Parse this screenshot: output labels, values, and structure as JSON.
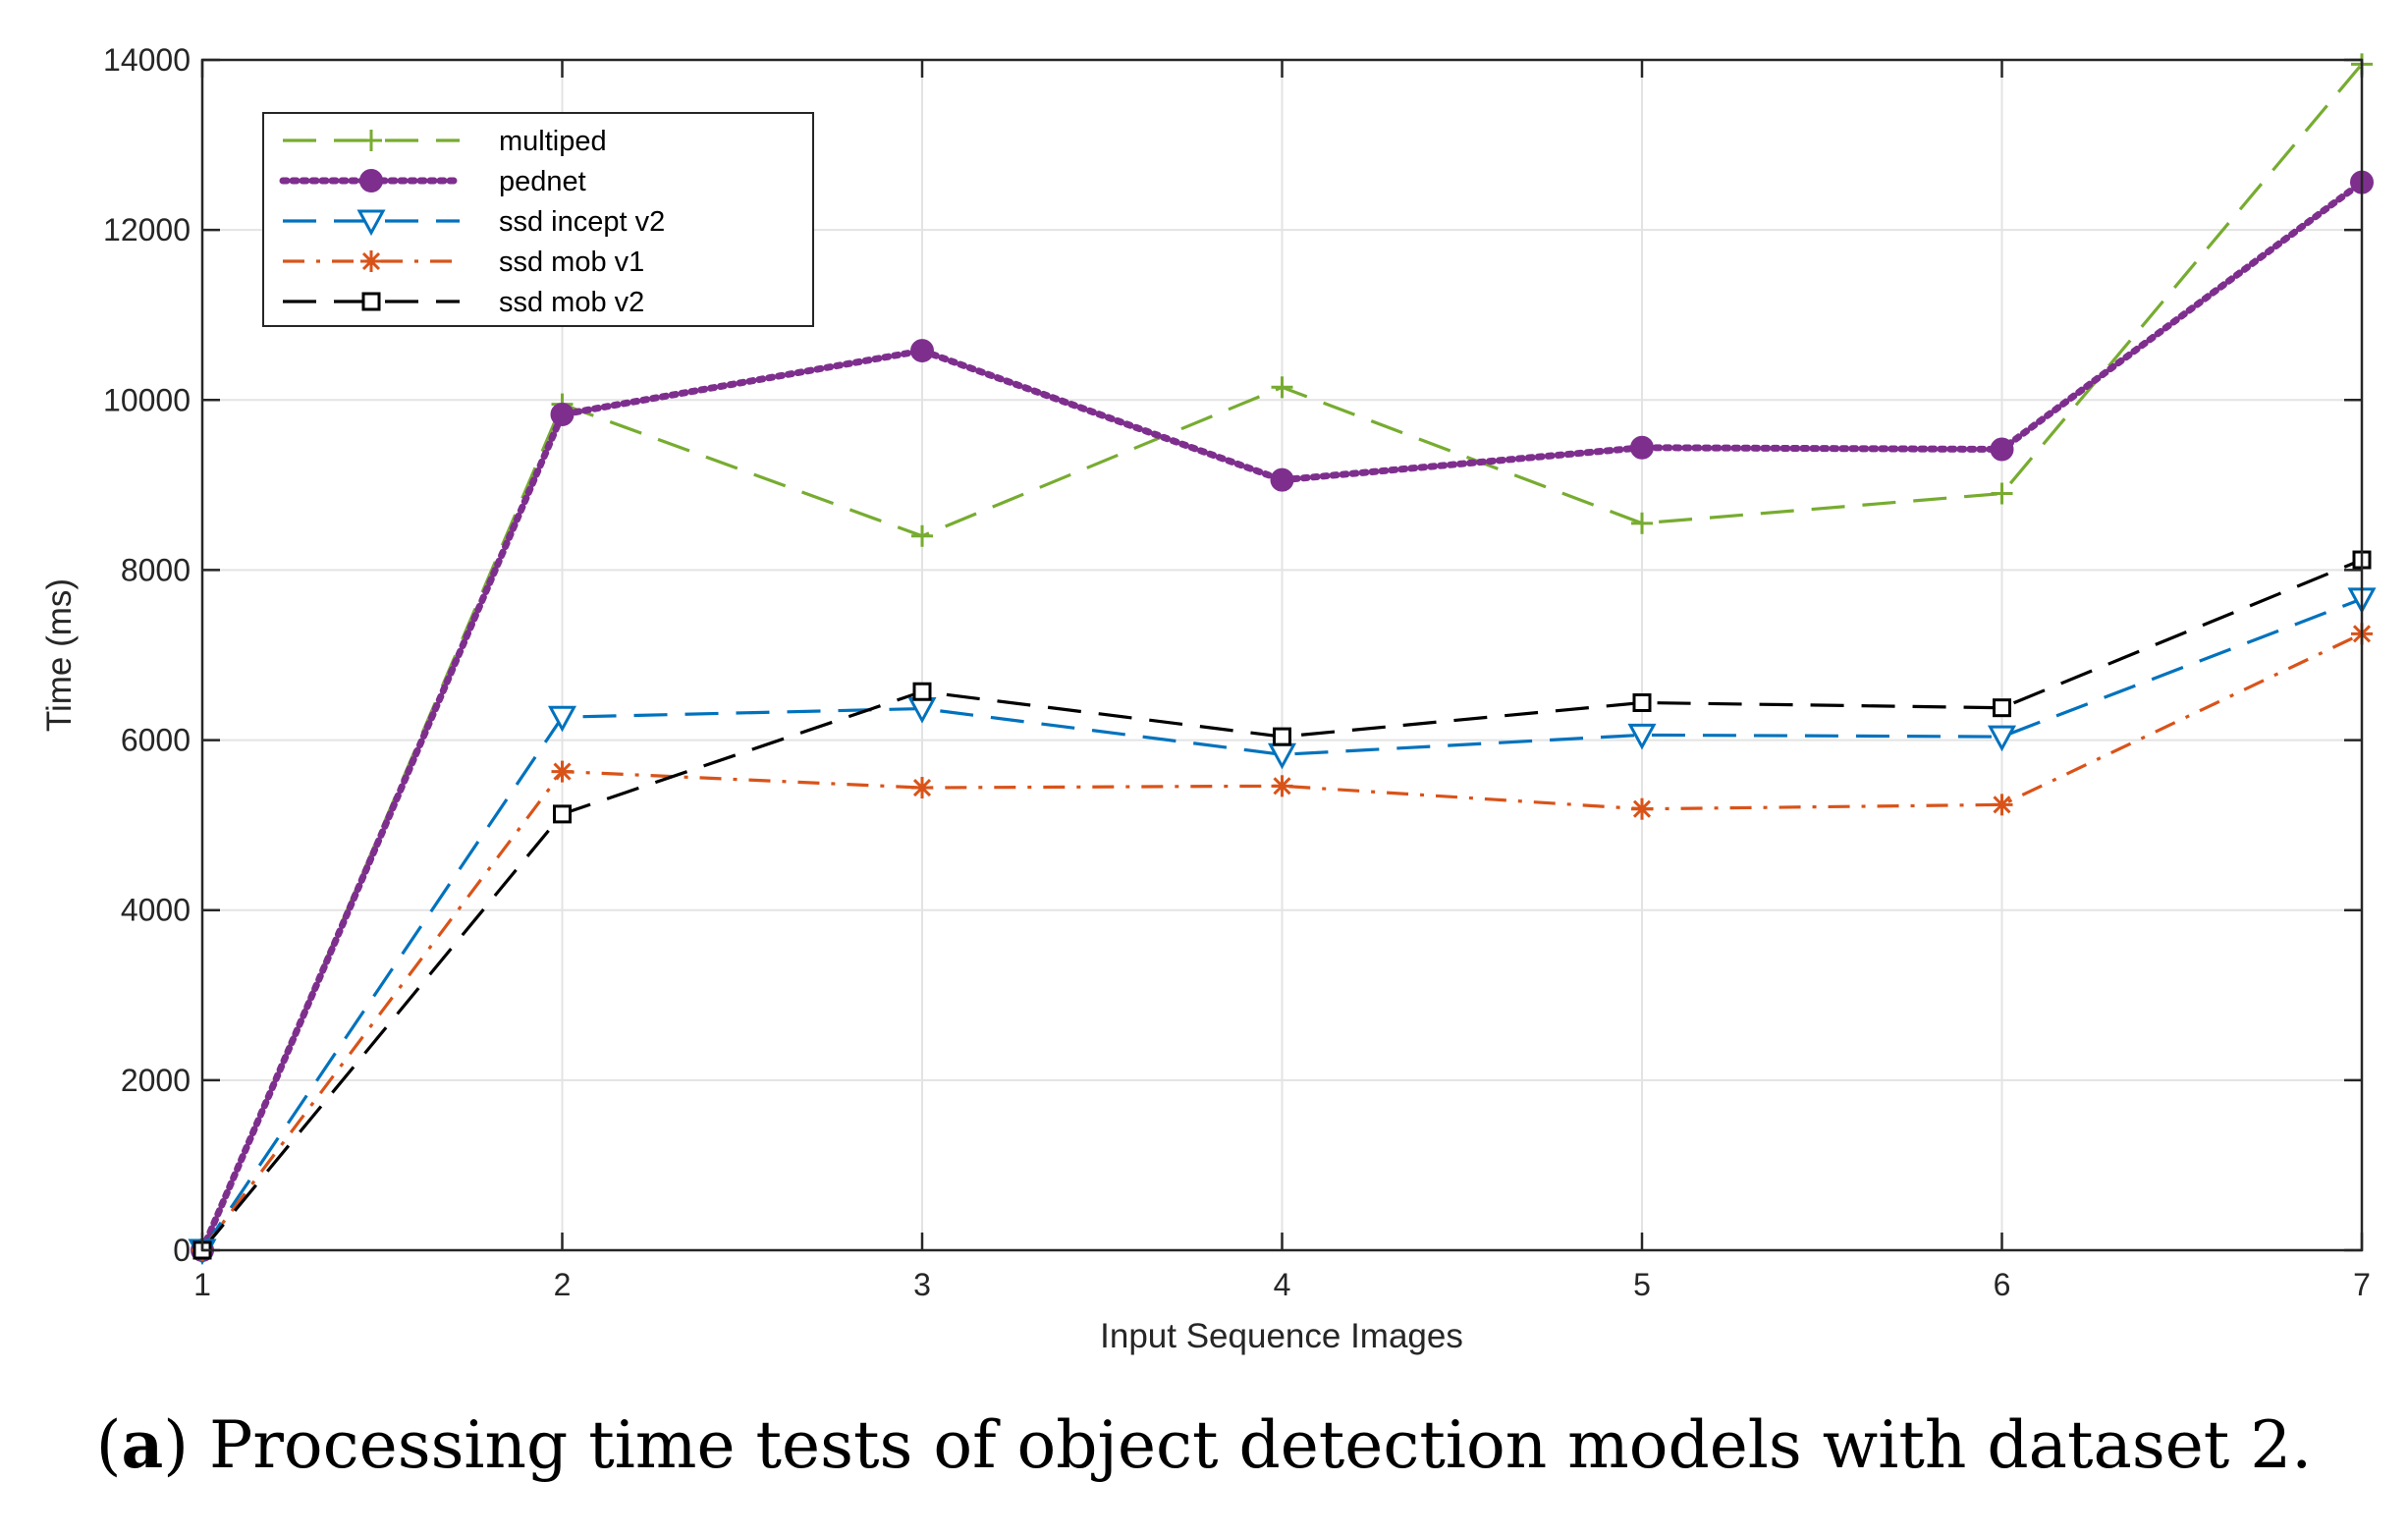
{
  "caption": {
    "prefix": "(",
    "label": "a",
    "text": ") Processing time tests of object detection models with dataset 2."
  },
  "chart_data": {
    "type": "line",
    "title": "",
    "xlabel": "Input Sequence Images",
    "ylabel": "Time (ms)",
    "x": [
      1,
      2,
      3,
      4,
      5,
      6,
      7
    ],
    "xlim": [
      1,
      7
    ],
    "ylim": [
      0,
      14000
    ],
    "xticks": [
      "1",
      "2",
      "3",
      "4",
      "5",
      "6",
      "7"
    ],
    "yticks": [
      "0",
      "2000",
      "4000",
      "6000",
      "8000",
      "10000",
      "12000",
      "14000"
    ],
    "grid": true,
    "legend_position": "top-left",
    "series": [
      {
        "name": "multiped",
        "color": "#77AC30",
        "dash": "long-dash",
        "marker": "plus",
        "values": [
          0,
          9950,
          8400,
          10150,
          8550,
          8900,
          13950
        ]
      },
      {
        "name": "pednet",
        "color": "#7E2F8E",
        "dash": "dotted",
        "marker": "filled-circle",
        "values": [
          0,
          9830,
          10580,
          9060,
          9440,
          9420,
          12560
        ]
      },
      {
        "name": "ssd incept v2",
        "color": "#0072BD",
        "dash": "long-dash",
        "marker": "triangle-down",
        "values": [
          0,
          6270,
          6370,
          5830,
          6060,
          6040,
          7660
        ]
      },
      {
        "name": "ssd mob v1",
        "color": "#D95319",
        "dash": "dash-dot",
        "marker": "asterisk",
        "values": [
          0,
          5630,
          5440,
          5460,
          5190,
          5240,
          7250
        ]
      },
      {
        "name": "ssd mob v2",
        "color": "#000000",
        "dash": "long-dash",
        "marker": "square",
        "values": [
          0,
          5130,
          6570,
          6040,
          6440,
          6380,
          8120
        ]
      }
    ]
  }
}
